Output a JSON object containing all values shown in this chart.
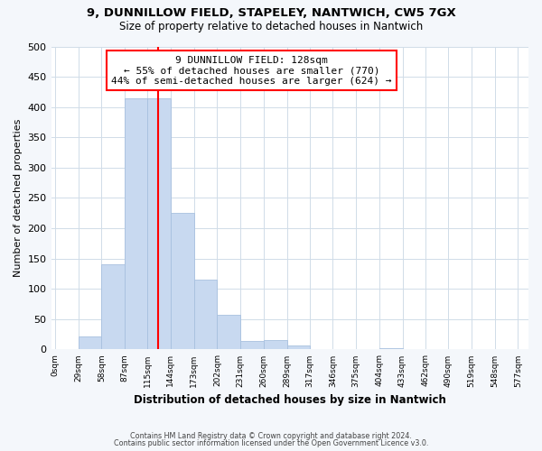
{
  "title": "9, DUNNILLOW FIELD, STAPELEY, NANTWICH, CW5 7GX",
  "subtitle": "Size of property relative to detached houses in Nantwich",
  "xlabel": "Distribution of detached houses by size in Nantwich",
  "ylabel": "Number of detached properties",
  "bar_edges": [
    0,
    29,
    58,
    87,
    115,
    144,
    173,
    202,
    231,
    260,
    289,
    317,
    346,
    375,
    404,
    433,
    462,
    490,
    519,
    548,
    577
  ],
  "bar_heights": [
    0,
    22,
    140,
    415,
    415,
    225,
    115,
    57,
    14,
    16,
    6,
    0,
    0,
    0,
    2,
    0,
    0,
    0,
    0,
    0,
    1
  ],
  "bar_color": "#c8d9f0",
  "bar_edgecolor": "#a8c0df",
  "property_line_x": 128,
  "property_line_color": "red",
  "annotation_title": "9 DUNNILLOW FIELD: 128sqm",
  "annotation_line1": "← 55% of detached houses are smaller (770)",
  "annotation_line2": "44% of semi-detached houses are larger (624) →",
  "annotation_box_color": "white",
  "annotation_box_edgecolor": "red",
  "ylim": [
    0,
    500
  ],
  "xlim": [
    -5,
    590
  ],
  "tick_labels": [
    "0sqm",
    "29sqm",
    "58sqm",
    "87sqm",
    "115sqm",
    "144sqm",
    "173sqm",
    "202sqm",
    "231sqm",
    "260sqm",
    "289sqm",
    "317sqm",
    "346sqm",
    "375sqm",
    "404sqm",
    "433sqm",
    "462sqm",
    "490sqm",
    "519sqm",
    "548sqm",
    "577sqm"
  ],
  "tick_positions": [
    0,
    29,
    58,
    87,
    115,
    144,
    173,
    202,
    231,
    260,
    289,
    317,
    346,
    375,
    404,
    433,
    462,
    490,
    519,
    548,
    577
  ],
  "footer_line1": "Contains HM Land Registry data © Crown copyright and database right 2024.",
  "footer_line2": "Contains public sector information licensed under the Open Government Licence v3.0.",
  "grid_color": "#d0dce8",
  "plot_bg_color": "#ffffff",
  "fig_bg_color": "#f4f7fb"
}
